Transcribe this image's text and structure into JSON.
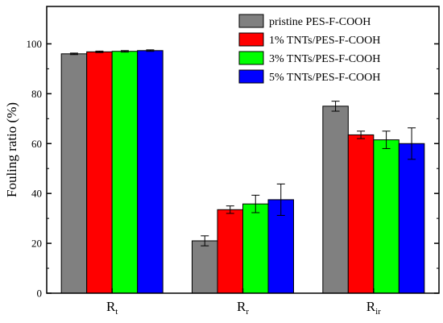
{
  "chart_data": {
    "type": "bar",
    "title": "",
    "xlabel": "",
    "ylabel": "Fouling ratio (%)",
    "ylim": [
      0,
      115
    ],
    "yticks": [
      0,
      20,
      40,
      60,
      80,
      100
    ],
    "grid": false,
    "legend_position": "top-right",
    "categories": [
      {
        "main": "R",
        "sub": "t"
      },
      {
        "main": "R",
        "sub": "r"
      },
      {
        "main": "R",
        "sub": "ir"
      }
    ],
    "series": [
      {
        "name": "pristine PES-F-COOH",
        "color": "#808080",
        "values": [
          96.0,
          21.0,
          75.0
        ],
        "errors": [
          0.3,
          2.0,
          2.0
        ]
      },
      {
        "name": "1% TNTs/PES-F-COOH",
        "color": "#ff0000",
        "values": [
          96.8,
          33.5,
          63.5
        ],
        "errors": [
          0.3,
          1.5,
          1.5
        ]
      },
      {
        "name": "3% TNTs/PES-F-COOH",
        "color": "#00ff00",
        "values": [
          97.0,
          35.8,
          61.5
        ],
        "errors": [
          0.3,
          3.5,
          3.5
        ]
      },
      {
        "name": "5% TNTs/PES-F-COOH",
        "color": "#0000ff",
        "values": [
          97.3,
          37.5,
          60.0
        ],
        "errors": [
          0.3,
          6.3,
          6.3
        ]
      }
    ]
  }
}
